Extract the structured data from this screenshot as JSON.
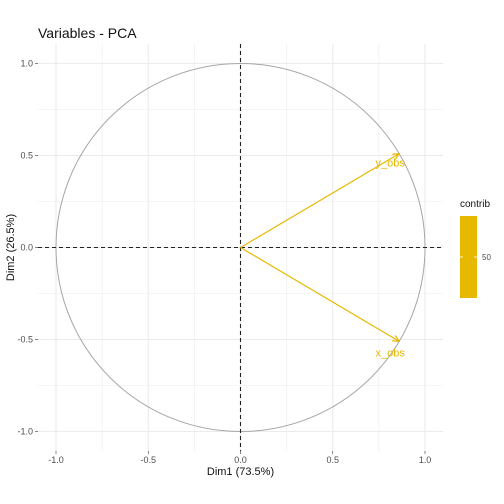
{
  "chart_data": {
    "type": "scatter",
    "subtype": "pca-variable-correlation-circle",
    "title": "Variables - PCA",
    "xlabel": "Dim1 (73.5%)",
    "ylabel": "Dim2 (26.5%)",
    "xlim": [
      -1.0,
      1.0
    ],
    "ylim": [
      -1.0,
      1.0
    ],
    "xticks": [
      -1.0,
      -0.5,
      0.0,
      0.5,
      1.0
    ],
    "yticks": [
      -1.0,
      -0.5,
      0.0,
      0.5,
      1.0
    ],
    "xtick_labels": [
      "-1.0",
      "-0.5",
      "0.0",
      "0.5",
      "1.0"
    ],
    "ytick_labels": [
      "-1.0",
      "-0.5",
      "0.0",
      "0.5",
      "1.0"
    ],
    "grid": true,
    "unit_circle": true,
    "reference_lines": {
      "x": 0,
      "y": 0,
      "style": "dashed"
    },
    "variables": [
      {
        "name": "y_obs",
        "x": 0.86,
        "y": 0.51,
        "contrib": 50
      },
      {
        "name": "x_obs",
        "x": 0.86,
        "y": -0.51,
        "contrib": 50
      }
    ],
    "legend": {
      "title": "contrib",
      "ticks": [
        50
      ],
      "position": "right",
      "color": "#E7B800"
    },
    "colors": {
      "arrows": "#E7B800",
      "circle": "#a6a6a6",
      "grid": "#ebebeb",
      "reference": "#222222"
    }
  }
}
